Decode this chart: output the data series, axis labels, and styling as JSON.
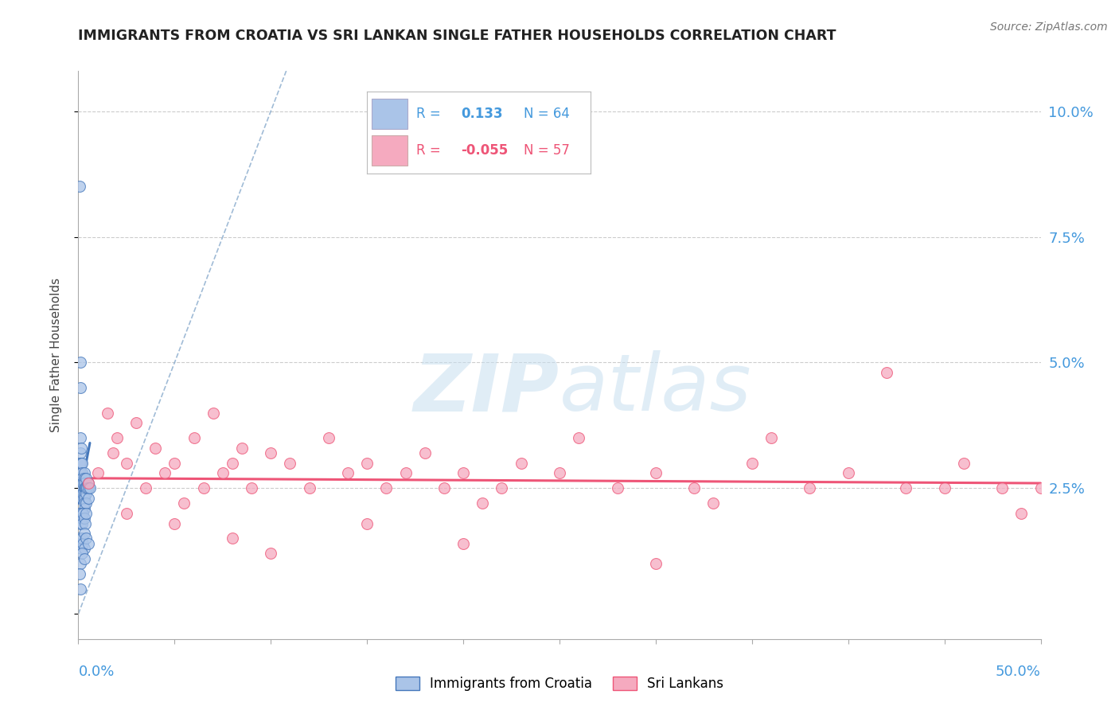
{
  "title": "IMMIGRANTS FROM CROATIA VS SRI LANKAN SINGLE FATHER HOUSEHOLDS CORRELATION CHART",
  "source": "Source: ZipAtlas.com",
  "ylabel": "Single Father Households",
  "xlim": [
    0.0,
    0.5
  ],
  "ylim": [
    -0.005,
    0.108
  ],
  "yticks": [
    0.0,
    0.025,
    0.05,
    0.075,
    0.1
  ],
  "ytick_labels": [
    "",
    "2.5%",
    "5.0%",
    "7.5%",
    "10.0%"
  ],
  "color_croatia": "#aac4e8",
  "color_srilanka": "#f5aabf",
  "color_blue_line": "#4477bb",
  "color_pink_line": "#ee5577",
  "color_grid": "#cccccc",
  "color_diag": "#88aacc",
  "croatia_x": [
    0.0005,
    0.001,
    0.001,
    0.001,
    0.001,
    0.001,
    0.001,
    0.001,
    0.001,
    0.0015,
    0.0015,
    0.0015,
    0.0015,
    0.002,
    0.002,
    0.002,
    0.002,
    0.002,
    0.002,
    0.002,
    0.0025,
    0.0025,
    0.003,
    0.003,
    0.003,
    0.003,
    0.003,
    0.003,
    0.003,
    0.003,
    0.0035,
    0.004,
    0.004,
    0.004,
    0.004,
    0.0045,
    0.005,
    0.005,
    0.005,
    0.006,
    0.0008,
    0.001,
    0.0012,
    0.0015,
    0.002,
    0.002,
    0.0025,
    0.003,
    0.0035,
    0.004,
    0.0008,
    0.001,
    0.0015,
    0.002,
    0.0025,
    0.003,
    0.003,
    0.004,
    0.005,
    0.001,
    0.002,
    0.003,
    0.0008,
    0.001
  ],
  "croatia_y": [
    0.085,
    0.05,
    0.045,
    0.035,
    0.032,
    0.03,
    0.028,
    0.027,
    0.026,
    0.033,
    0.03,
    0.027,
    0.025,
    0.03,
    0.028,
    0.027,
    0.026,
    0.025,
    0.024,
    0.023,
    0.026,
    0.024,
    0.028,
    0.027,
    0.026,
    0.025,
    0.024,
    0.023,
    0.022,
    0.021,
    0.025,
    0.027,
    0.025,
    0.024,
    0.022,
    0.025,
    0.026,
    0.025,
    0.023,
    0.025,
    0.02,
    0.019,
    0.018,
    0.02,
    0.019,
    0.018,
    0.02,
    0.019,
    0.018,
    0.02,
    0.015,
    0.014,
    0.013,
    0.015,
    0.014,
    0.016,
    0.013,
    0.015,
    0.014,
    0.01,
    0.012,
    0.011,
    0.008,
    0.005
  ],
  "srilanka_x": [
    0.005,
    0.01,
    0.015,
    0.018,
    0.02,
    0.025,
    0.03,
    0.035,
    0.04,
    0.045,
    0.05,
    0.055,
    0.06,
    0.065,
    0.07,
    0.075,
    0.08,
    0.085,
    0.09,
    0.1,
    0.11,
    0.12,
    0.13,
    0.14,
    0.15,
    0.16,
    0.17,
    0.18,
    0.19,
    0.2,
    0.21,
    0.22,
    0.23,
    0.25,
    0.26,
    0.28,
    0.3,
    0.32,
    0.33,
    0.35,
    0.36,
    0.38,
    0.4,
    0.42,
    0.43,
    0.45,
    0.46,
    0.48,
    0.49,
    0.5,
    0.025,
    0.05,
    0.08,
    0.1,
    0.15,
    0.2,
    0.3
  ],
  "srilanka_y": [
    0.026,
    0.028,
    0.04,
    0.032,
    0.035,
    0.03,
    0.038,
    0.025,
    0.033,
    0.028,
    0.03,
    0.022,
    0.035,
    0.025,
    0.04,
    0.028,
    0.03,
    0.033,
    0.025,
    0.032,
    0.03,
    0.025,
    0.035,
    0.028,
    0.03,
    0.025,
    0.028,
    0.032,
    0.025,
    0.028,
    0.022,
    0.025,
    0.03,
    0.028,
    0.035,
    0.025,
    0.028,
    0.025,
    0.022,
    0.03,
    0.035,
    0.025,
    0.028,
    0.048,
    0.025,
    0.025,
    0.03,
    0.025,
    0.02,
    0.025,
    0.02,
    0.018,
    0.015,
    0.012,
    0.018,
    0.014,
    0.01
  ]
}
